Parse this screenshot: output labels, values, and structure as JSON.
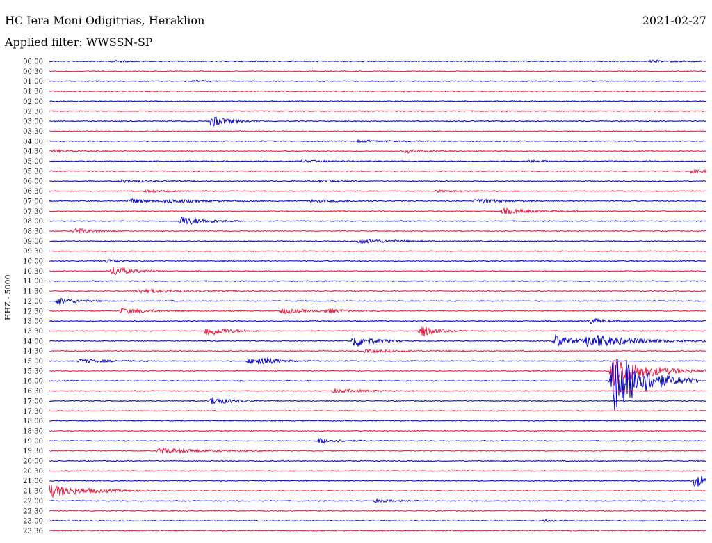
{
  "header": {
    "station": "HC Iera Moni Odigitrias, Heraklion",
    "date": "2021-02-27",
    "filter": "Applied filter: WWSSN-SP"
  },
  "chart_data": {
    "type": "line",
    "title": "HC Iera Moni Odigitrias, Heraklion",
    "ylabel": "HHZ - 5000",
    "colors": {
      "even_rows": "#0000cc",
      "odd_rows": "#e8143c"
    },
    "rows": [
      "00:00",
      "00:30",
      "01:00",
      "01:30",
      "02:00",
      "02:30",
      "03:00",
      "03:30",
      "04:00",
      "04:30",
      "05:00",
      "05:30",
      "06:00",
      "06:30",
      "07:00",
      "07:30",
      "08:00",
      "08:30",
      "09:00",
      "09:30",
      "10:00",
      "10:30",
      "11:00",
      "11:30",
      "12:00",
      "12:30",
      "13:00",
      "13:30",
      "14:00",
      "14:30",
      "15:00",
      "15:30",
      "16:00",
      "16:30",
      "17:00",
      "17:30",
      "18:00",
      "18:30",
      "19:00",
      "19:30",
      "20:00",
      "20:30",
      "21:00",
      "21:30",
      "22:00",
      "22:30",
      "23:00",
      "23:30"
    ],
    "minutes_per_row": 30,
    "events": [
      {
        "row": 0,
        "minute": 2.9,
        "amp": 1.2,
        "dur": 0.8
      },
      {
        "row": 0,
        "minute": 27.5,
        "amp": 1.5,
        "dur": 1.2
      },
      {
        "row": 2,
        "minute": 6.6,
        "amp": 1,
        "dur": 0.6
      },
      {
        "row": 6,
        "minute": 7.4,
        "amp": 8,
        "dur": 0.8
      },
      {
        "row": 8,
        "minute": 14.1,
        "amp": 1.2,
        "dur": 1.5
      },
      {
        "row": 9,
        "minute": 0.2,
        "amp": 2,
        "dur": 0.8
      },
      {
        "row": 9,
        "minute": 16.3,
        "amp": 2.5,
        "dur": 0.8
      },
      {
        "row": 10,
        "minute": 11.5,
        "amp": 1.2,
        "dur": 1.5
      },
      {
        "row": 10,
        "minute": 21.9,
        "amp": 1.5,
        "dur": 0.8
      },
      {
        "row": 11,
        "minute": 29.3,
        "amp": 2.5,
        "dur": 1
      },
      {
        "row": 12,
        "minute": 3.3,
        "amp": 2,
        "dur": 1.2
      },
      {
        "row": 12,
        "minute": 12.4,
        "amp": 2,
        "dur": 0.8
      },
      {
        "row": 13,
        "minute": 4.4,
        "amp": 1.5,
        "dur": 1.5
      },
      {
        "row": 13,
        "minute": 17.6,
        "amp": 1.2,
        "dur": 1.5
      },
      {
        "row": 14,
        "minute": 3.7,
        "amp": 3.5,
        "dur": 0.8
      },
      {
        "row": 14,
        "minute": 5.3,
        "amp": 2.5,
        "dur": 1.5
      },
      {
        "row": 14,
        "minute": 11.9,
        "amp": 1.5,
        "dur": 1.5
      },
      {
        "row": 14,
        "minute": 19.5,
        "amp": 3.5,
        "dur": 1
      },
      {
        "row": 15,
        "minute": 20.7,
        "amp": 4,
        "dur": 1.2
      },
      {
        "row": 16,
        "minute": 6.0,
        "amp": 7,
        "dur": 1
      },
      {
        "row": 17,
        "minute": 1.2,
        "amp": 4,
        "dur": 0.8
      },
      {
        "row": 18,
        "minute": 14.1,
        "amp": 3,
        "dur": 1.5
      },
      {
        "row": 20,
        "minute": 2.6,
        "amp": 2.5,
        "dur": 0.6
      },
      {
        "row": 21,
        "minute": 2.9,
        "amp": 7,
        "dur": 0.8
      },
      {
        "row": 23,
        "minute": 4.0,
        "amp": 3,
        "dur": 2
      },
      {
        "row": 24,
        "minute": 0.4,
        "amp": 5,
        "dur": 0.8
      },
      {
        "row": 25,
        "minute": 3.3,
        "amp": 4,
        "dur": 1.2
      },
      {
        "row": 25,
        "minute": 10.6,
        "amp": 4,
        "dur": 1
      },
      {
        "row": 25,
        "minute": 12.7,
        "amp": 3,
        "dur": 0.8
      },
      {
        "row": 26,
        "minute": 24.7,
        "amp": 4,
        "dur": 0.6
      },
      {
        "row": 27,
        "minute": 7.2,
        "amp": 8,
        "dur": 0.8
      },
      {
        "row": 27,
        "minute": 16.9,
        "amp": 3,
        "dur": 1
      },
      {
        "row": 27,
        "minute": 17.0,
        "amp": 7,
        "dur": 0.4
      },
      {
        "row": 28,
        "minute": 13.9,
        "amp": 10,
        "dur": 0.8
      },
      {
        "row": 28,
        "minute": 23.1,
        "amp": 9,
        "dur": 0.8
      },
      {
        "row": 28,
        "minute": 24.6,
        "amp": 10,
        "dur": 1.8
      },
      {
        "row": 29,
        "minute": 14.4,
        "amp": 2,
        "dur": 2
      },
      {
        "row": 30,
        "minute": 1.4,
        "amp": 3,
        "dur": 1.2
      },
      {
        "row": 30,
        "minute": 9.1,
        "amp": 3,
        "dur": 1.2
      },
      {
        "row": 30,
        "minute": 9.6,
        "amp": 7,
        "dur": 0.5
      },
      {
        "row": 31,
        "minute": 25.7,
        "amp": 22,
        "dur": 1.5
      },
      {
        "row": 32,
        "minute": 25.7,
        "amp": 50,
        "dur": 1.3
      },
      {
        "row": 33,
        "minute": 13.0,
        "amp": 2.5,
        "dur": 1.5
      },
      {
        "row": 34,
        "minute": 7.4,
        "amp": 6,
        "dur": 0.8
      },
      {
        "row": 38,
        "minute": 12.3,
        "amp": 4,
        "dur": 0.8
      },
      {
        "row": 39,
        "minute": 5.0,
        "amp": 4,
        "dur": 1.8
      },
      {
        "row": 42,
        "minute": 29.5,
        "amp": 10,
        "dur": 0.6
      },
      {
        "row": 43,
        "minute": 0.0,
        "amp": 9,
        "dur": 1.6
      },
      {
        "row": 44,
        "minute": 14.9,
        "amp": 2,
        "dur": 0.8
      },
      {
        "row": 46,
        "minute": 22.6,
        "amp": 1.5,
        "dur": 0.6
      }
    ]
  }
}
